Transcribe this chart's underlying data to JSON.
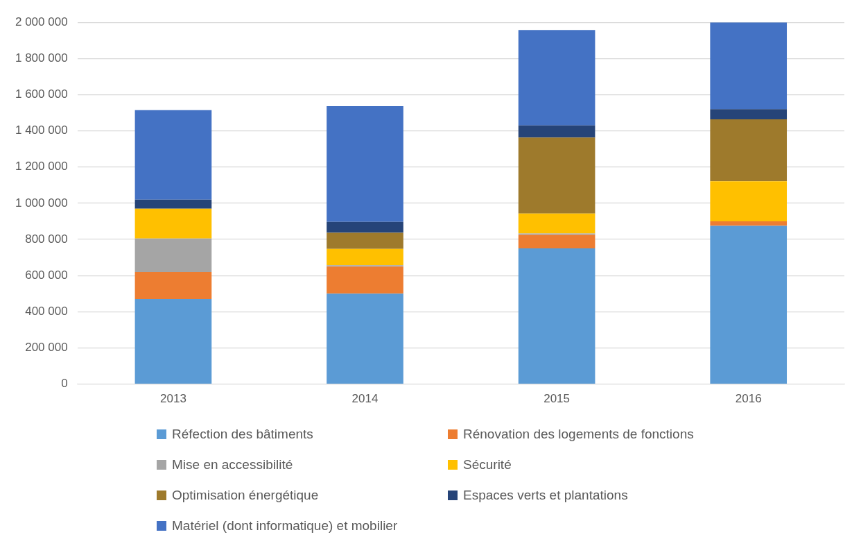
{
  "chart_data": {
    "type": "bar",
    "stacked": true,
    "categories": [
      "2013",
      "2014",
      "2015",
      "2016"
    ],
    "series": [
      {
        "name": "Réfection des bâtiments",
        "color": "#5b9bd5",
        "values": [
          470000,
          500000,
          750000,
          875000
        ]
      },
      {
        "name": "Rénovation des logements de fonctions",
        "color": "#ed7d31",
        "values": [
          150000,
          150000,
          75000,
          25000
        ]
      },
      {
        "name": "Mise en accessibilité",
        "color": "#a5a5a5",
        "values": [
          185000,
          7000,
          8000,
          0
        ]
      },
      {
        "name": "Sécurité",
        "color": "#ffc000",
        "values": [
          165000,
          90000,
          110000,
          221000
        ]
      },
      {
        "name": "Optimisation énergétique",
        "color": "#9e7a2c",
        "values": [
          0,
          90000,
          420000,
          343000
        ]
      },
      {
        "name": "Espaces verts et plantations",
        "color": "#264478",
        "values": [
          50000,
          60000,
          67000,
          56000
        ]
      },
      {
        "name": "Matériel (dont informatique) et mobilier",
        "color": "#4472c4",
        "values": [
          495000,
          640000,
          528000,
          480000
        ]
      }
    ],
    "ylim": [
      0,
      2000000
    ],
    "yticks": [
      0,
      200000,
      400000,
      600000,
      800000,
      1000000,
      1200000,
      1400000,
      1600000,
      1800000,
      2000000
    ],
    "grid": "y",
    "legend": "bottom"
  }
}
